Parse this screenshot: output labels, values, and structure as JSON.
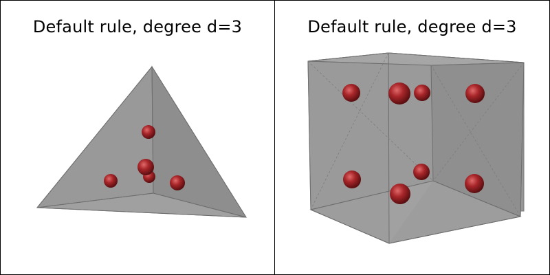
{
  "panels": [
    {
      "title": "Default rule, degree d=3",
      "shape": "tetrahedron",
      "point_count": 5
    },
    {
      "title": "Default rule, degree d=3",
      "shape": "hexahedron",
      "point_count": 8
    }
  ],
  "colors": {
    "solid_face": "#959595",
    "solid_face_light": "#a2a2a2",
    "edge": "#6e6e6e",
    "point": "#a8262a",
    "point_highlight": "#e06a6a",
    "point_shadow": "#5a0e10",
    "panel_border": "#000000"
  }
}
